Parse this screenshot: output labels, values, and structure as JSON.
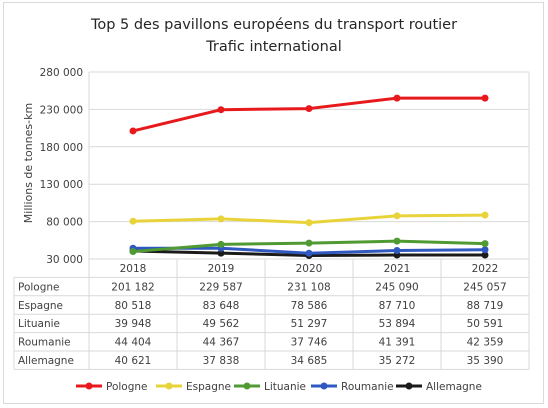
{
  "chart_data": {
    "type": "line",
    "title": "Top 5 des pavillons européens du transport routier",
    "subtitle": "Trafic international",
    "ylabel": "Millions de tonnes-km",
    "xlabel": "",
    "categories": [
      "2018",
      "2019",
      "2020",
      "2021",
      "2022"
    ],
    "ylim": [
      30000,
      280000
    ],
    "yticks": [
      30000,
      80000,
      130000,
      180000,
      230000,
      280000
    ],
    "ytick_labels": [
      "30 000",
      "80 000",
      "130 000",
      "180 000",
      "230 000",
      "280 000"
    ],
    "grid": true,
    "legend": "bottom",
    "series": [
      {
        "name": "Pologne",
        "color": "#e8191d",
        "values": [
          201182,
          229587,
          231108,
          245090,
          245057
        ],
        "labels": [
          "201 182",
          "229 587",
          "231 108",
          "245 090",
          "245 057"
        ]
      },
      {
        "name": "Espagne",
        "color": "#e8d43a",
        "values": [
          80518,
          83648,
          78586,
          87710,
          88719
        ],
        "labels": [
          "80 518",
          "83 648",
          "78 586",
          "87 710",
          "88 719"
        ]
      },
      {
        "name": "Lituanie",
        "color": "#4f9a33",
        "values": [
          39948,
          49562,
          51297,
          53894,
          50591
        ],
        "labels": [
          "39 948",
          "49 562",
          "51 297",
          "53 894",
          "50 591"
        ]
      },
      {
        "name": "Roumanie",
        "color": "#2f58c0",
        "values": [
          44404,
          44367,
          37746,
          41391,
          42359
        ],
        "labels": [
          "44 404",
          "44 367",
          "37 746",
          "41 391",
          "42 359"
        ]
      },
      {
        "name": "Allemagne",
        "color": "#1a1a1a",
        "values": [
          40621,
          37838,
          34685,
          35272,
          35390
        ],
        "labels": [
          "40 621",
          "37 838",
          "34 685",
          "35 272",
          "35 390"
        ]
      }
    ]
  }
}
